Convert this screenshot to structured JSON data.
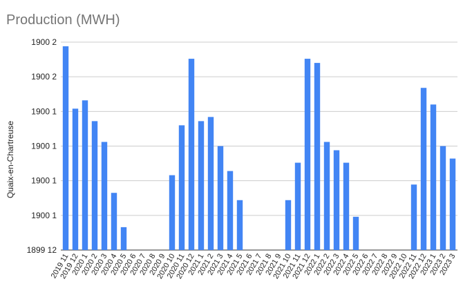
{
  "chart_data": {
    "type": "bar",
    "title": "Production (MWH)",
    "xlabel": "",
    "ylabel": "Quaix-en-Chartreuse",
    "y_tick_labels": [
      "1899 12",
      "1900 1",
      "1900 1",
      "1900 1",
      "1900 1",
      "1900 2",
      "1900 2"
    ],
    "ylim": [
      0,
      100
    ],
    "grid": true,
    "legend": "none",
    "bar_color": "#4285f4",
    "grid_color": "#cccccc",
    "categories": [
      "2019 11",
      "2019 12",
      "2020 1",
      "2020 2",
      "2020 3",
      "2020 4",
      "2020 5",
      "2020 6",
      "2020 7",
      "2020 8",
      "2020 9",
      "2020 10",
      "2020 11",
      "2020 12",
      "2021 1",
      "2021 2",
      "2021 3",
      "2021 4",
      "2021 5",
      "2021 6",
      "2021 7",
      "2021 8",
      "2021 9",
      "2021 10",
      "2021 11",
      "2021 12",
      "2022 1",
      "2022 2",
      "2022 3",
      "2022 4",
      "2022 5",
      "2022 6",
      "2022 7",
      "2022 8",
      "2022 9",
      "2022 10",
      "2022 11",
      "2022 12",
      "2023 1",
      "2023 2",
      "2023 3"
    ],
    "values": [
      98,
      68,
      72,
      62,
      52,
      27.5,
      11,
      0,
      0,
      0,
      0,
      36,
      60,
      92,
      62,
      64,
      50,
      38,
      24,
      0,
      0,
      0,
      0,
      24,
      42,
      92,
      90,
      52,
      48,
      42,
      16,
      0,
      0,
      0,
      0,
      0,
      31.5,
      78,
      70,
      50,
      44
    ]
  }
}
